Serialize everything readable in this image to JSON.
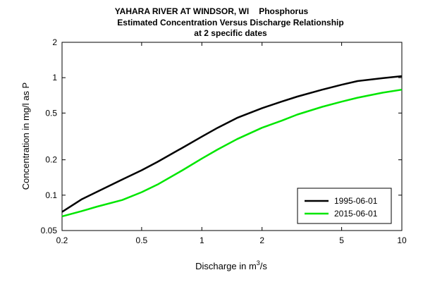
{
  "chart_data": {
    "type": "line",
    "title": {
      "line1_site": "YAHARA RIVER AT WINDSOR, WI",
      "line1_constituent": "Phosphorus",
      "line2": "Estimated Concentration Versus Discharge Relationship",
      "line3": "at 2 specific dates"
    },
    "xlabel": {
      "text": "Discharge in m",
      "superscript": "3",
      "suffix": "/s"
    },
    "ylabel": "Concentration in mg/l as P",
    "x_scale": "log",
    "y_scale": "log",
    "xlim": [
      0.2,
      10
    ],
    "ylim": [
      0.05,
      2
    ],
    "x_ticks": [
      {
        "value": 0.2,
        "label": "0.2"
      },
      {
        "value": 0.5,
        "label": "0.5"
      },
      {
        "value": 1,
        "label": "1"
      },
      {
        "value": 2,
        "label": "2"
      },
      {
        "value": 5,
        "label": "5"
      },
      {
        "value": 10,
        "label": "10"
      }
    ],
    "y_ticks": [
      {
        "value": 0.05,
        "label": "0.05"
      },
      {
        "value": 0.1,
        "label": "0.1"
      },
      {
        "value": 0.2,
        "label": "0.2"
      },
      {
        "value": 0.5,
        "label": "0.5"
      },
      {
        "value": 1,
        "label": "1"
      },
      {
        "value": 2,
        "label": "2"
      }
    ],
    "grid": false,
    "legend_position": "bottom-right",
    "series": [
      {
        "name": "1995-06-01",
        "color": "#000000",
        "x": [
          0.2,
          0.25,
          0.3,
          0.4,
          0.5,
          0.6,
          0.8,
          1.0,
          1.2,
          1.5,
          2.0,
          2.5,
          3.0,
          4.0,
          5.0,
          6.0,
          8.0,
          10.0
        ],
        "y": [
          0.072,
          0.092,
          0.107,
          0.136,
          0.163,
          0.192,
          0.253,
          0.315,
          0.375,
          0.455,
          0.55,
          0.625,
          0.69,
          0.79,
          0.87,
          0.935,
          0.99,
          1.03
        ]
      },
      {
        "name": "2015-06-01",
        "color": "#00e600",
        "x": [
          0.2,
          0.25,
          0.3,
          0.4,
          0.5,
          0.6,
          0.8,
          1.0,
          1.2,
          1.5,
          2.0,
          2.5,
          3.0,
          4.0,
          5.0,
          6.0,
          8.0,
          10.0
        ],
        "y": [
          0.066,
          0.073,
          0.08,
          0.091,
          0.106,
          0.123,
          0.163,
          0.205,
          0.245,
          0.3,
          0.375,
          0.43,
          0.485,
          0.565,
          0.625,
          0.675,
          0.745,
          0.79
        ]
      }
    ]
  }
}
